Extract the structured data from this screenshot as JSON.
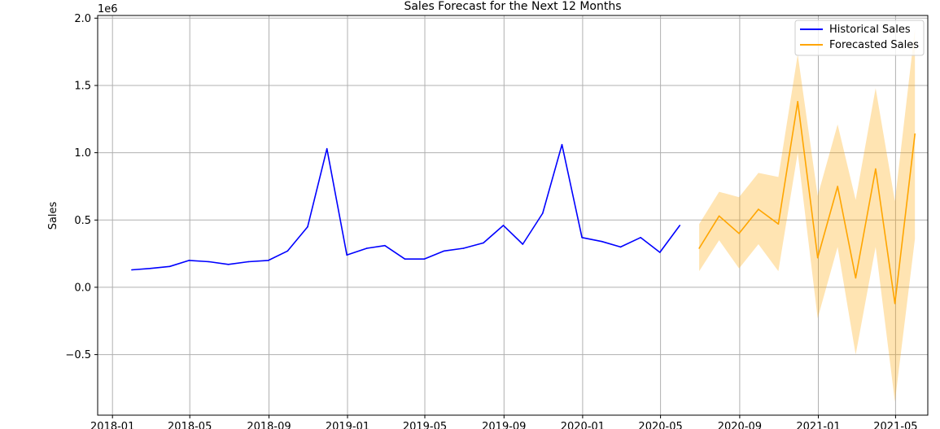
{
  "chart_data": {
    "type": "line",
    "title": "Sales Forecast for the Next 12 Months",
    "ylabel": "Sales",
    "xlabel": "",
    "y_offset_label": "1e6",
    "ylim": [
      -0.95,
      2.02
    ],
    "xlim": [
      "2017-12-09",
      "2021-06-20"
    ],
    "grid": true,
    "legend_position": "top-right",
    "x_ticks": [
      {
        "date": "2018-01-01",
        "label": "2018-01"
      },
      {
        "date": "2018-05-01",
        "label": "2018-05"
      },
      {
        "date": "2018-09-01",
        "label": "2018-09"
      },
      {
        "date": "2019-01-01",
        "label": "2019-01"
      },
      {
        "date": "2019-05-01",
        "label": "2019-05"
      },
      {
        "date": "2019-09-01",
        "label": "2019-09"
      },
      {
        "date": "2020-01-01",
        "label": "2020-01"
      },
      {
        "date": "2020-05-01",
        "label": "2020-05"
      },
      {
        "date": "2020-09-01",
        "label": "2020-09"
      },
      {
        "date": "2021-01-01",
        "label": "2021-01"
      },
      {
        "date": "2021-05-01",
        "label": "2021-05"
      }
    ],
    "y_ticks": [
      {
        "value": -0.5,
        "label": "−0.5"
      },
      {
        "value": 0.0,
        "label": "0.0"
      },
      {
        "value": 0.5,
        "label": "0.5"
      },
      {
        "value": 1.0,
        "label": "1.0"
      },
      {
        "value": 1.5,
        "label": "1.5"
      },
      {
        "value": 2.0,
        "label": "2.0"
      }
    ],
    "series": [
      {
        "name": "Historical Sales",
        "color": "#0000ff",
        "x": [
          "2018-01-31",
          "2018-02-28",
          "2018-03-31",
          "2018-04-30",
          "2018-05-31",
          "2018-06-30",
          "2018-07-31",
          "2018-08-31",
          "2018-09-30",
          "2018-10-31",
          "2018-11-30",
          "2018-12-31",
          "2019-01-31",
          "2019-02-28",
          "2019-03-31",
          "2019-04-30",
          "2019-05-31",
          "2019-06-30",
          "2019-07-31",
          "2019-08-31",
          "2019-09-30",
          "2019-10-31",
          "2019-11-30",
          "2019-12-31",
          "2020-01-31",
          "2020-02-29",
          "2020-03-31",
          "2020-04-30",
          "2020-05-31"
        ],
        "values": [
          0.13,
          0.14,
          0.155,
          0.2,
          0.19,
          0.17,
          0.19,
          0.2,
          0.27,
          0.45,
          1.03,
          0.24,
          0.29,
          0.31,
          0.21,
          0.21,
          0.27,
          0.29,
          0.33,
          0.46,
          0.32,
          0.55,
          1.06,
          0.37,
          0.34,
          0.3,
          0.37,
          0.26,
          0.46
        ]
      },
      {
        "name": "Forecasted Sales",
        "color": "#ffa500",
        "x": [
          "2020-06-30",
          "2020-07-31",
          "2020-08-31",
          "2020-09-30",
          "2020-10-31",
          "2020-11-30",
          "2020-12-31",
          "2021-01-31",
          "2021-02-28",
          "2021-03-31",
          "2021-04-30",
          "2021-05-31"
        ],
        "values": [
          0.29,
          0.53,
          0.4,
          0.58,
          0.47,
          1.38,
          0.22,
          0.75,
          0.07,
          0.88,
          -0.12,
          1.14
        ],
        "lower": [
          0.12,
          0.35,
          0.14,
          0.32,
          0.12,
          1.0,
          -0.23,
          0.3,
          -0.5,
          0.3,
          -0.85,
          0.36
        ],
        "upper": [
          0.47,
          0.71,
          0.67,
          0.85,
          0.82,
          1.73,
          0.68,
          1.21,
          0.65,
          1.48,
          0.64,
          1.92
        ],
        "band_color": "#ffa500"
      }
    ]
  }
}
